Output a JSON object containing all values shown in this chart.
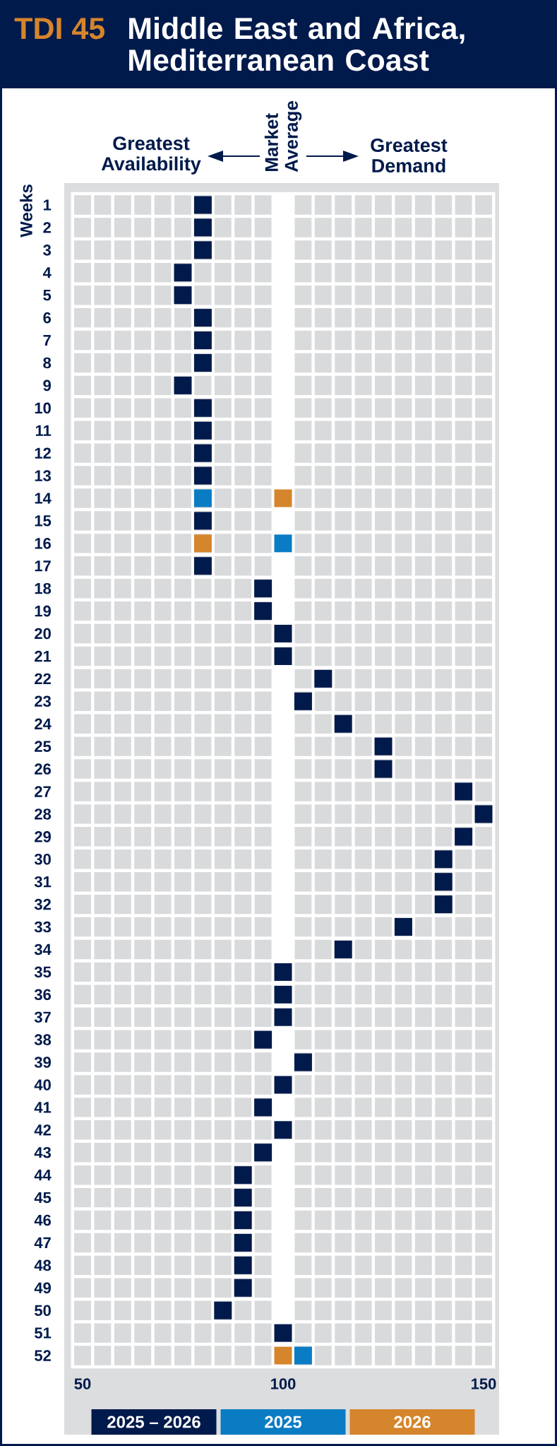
{
  "chart_data": {
    "type": "scatter",
    "orientation": "horizontal",
    "title": "TDI 45",
    "subtitle": "Middle East and Africa, Mediterranean Coast",
    "ylabel": "Weeks",
    "annotations": [
      "Greatest Availability",
      "Market Average",
      "Greatest Demand"
    ],
    "categories": [
      "1",
      "2",
      "3",
      "4",
      "5",
      "6",
      "7",
      "8",
      "9",
      "10",
      "11",
      "12",
      "13",
      "14",
      "15",
      "16",
      "17",
      "18",
      "19",
      "20",
      "21",
      "22",
      "23",
      "24",
      "25",
      "26",
      "27",
      "28",
      "29",
      "30",
      "31",
      "32",
      "33",
      "34",
      "35",
      "36",
      "37",
      "38",
      "39",
      "40",
      "41",
      "42",
      "43",
      "44",
      "45",
      "46",
      "47",
      "48",
      "49",
      "50",
      "51",
      "52"
    ],
    "series": [
      {
        "name": "2025 – 2026",
        "color": "#001a4b",
        "values": [
          80,
          80,
          80,
          75,
          75,
          80,
          80,
          80,
          75,
          80,
          80,
          80,
          80,
          null,
          80,
          null,
          80,
          95,
          95,
          100,
          100,
          110,
          105,
          115,
          125,
          125,
          145,
          150,
          145,
          140,
          140,
          140,
          130,
          115,
          100,
          100,
          100,
          95,
          105,
          100,
          95,
          100,
          95,
          90,
          90,
          90,
          90,
          90,
          90,
          85,
          100,
          null
        ]
      },
      {
        "name": "2025",
        "color": "#0a7cc4",
        "values": [
          null,
          null,
          null,
          null,
          null,
          null,
          null,
          null,
          null,
          null,
          null,
          null,
          null,
          80,
          null,
          100,
          null,
          null,
          null,
          null,
          null,
          null,
          null,
          null,
          null,
          null,
          null,
          null,
          null,
          null,
          null,
          null,
          null,
          null,
          null,
          null,
          null,
          null,
          null,
          null,
          null,
          null,
          null,
          null,
          null,
          null,
          null,
          null,
          null,
          null,
          null,
          105
        ]
      },
      {
        "name": "2026",
        "color": "#d5852b",
        "values": [
          null,
          null,
          null,
          null,
          null,
          null,
          null,
          null,
          null,
          null,
          null,
          null,
          null,
          100,
          null,
          80,
          null,
          null,
          null,
          null,
          null,
          null,
          null,
          null,
          null,
          null,
          null,
          null,
          null,
          null,
          null,
          null,
          null,
          null,
          null,
          null,
          null,
          null,
          null,
          null,
          null,
          null,
          null,
          null,
          null,
          null,
          null,
          null,
          null,
          null,
          null,
          100
        ]
      }
    ],
    "xlim": [
      47.5,
      152.5
    ],
    "xticks": [
      50,
      {
        "value": 52.5,
        "label": null
      },
      {
        "value": 57.5,
        "label": null
      },
      {
        "value": 62.5,
        "label": null
      },
      {
        "value": 67.5,
        "label": null
      },
      {
        "value": 72.5,
        "label": null
      },
      {
        "value": 77.5,
        "label": null
      },
      {
        "value": 82.5,
        "label": null
      },
      {
        "value": 87.5,
        "label": null
      },
      {
        "value": 92.5,
        "label": null
      },
      {
        "value": 97.5,
        "label": null
      },
      100,
      {
        "value": 102.5,
        "label": null
      },
      {
        "value": 107.5,
        "label": null
      },
      {
        "value": 112.5,
        "label": null
      },
      {
        "value": 117.5,
        "label": null
      },
      {
        "value": 122.5,
        "label": null
      },
      {
        "value": 127.5,
        "label": null
      },
      {
        "value": 132.5,
        "label": null
      },
      {
        "value": 137.5,
        "label": null
      },
      {
        "value": 142.5,
        "label": null
      },
      {
        "value": 147.5,
        "label": null
      },
      150
    ],
    "bands": [
      {
        "axis": "x",
        "from": 97.5,
        "to": 102.5,
        "color": "#ffffff"
      }
    ],
    "grid": true,
    "legend": "bottom",
    "marker": "square"
  }
}
